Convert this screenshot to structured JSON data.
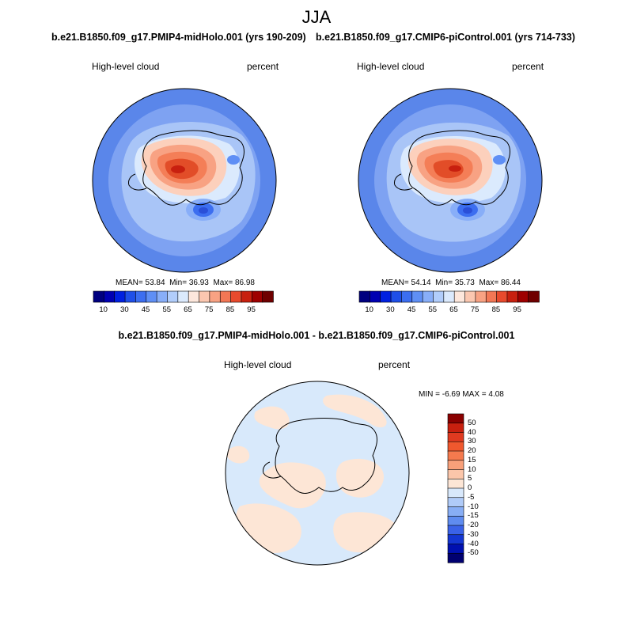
{
  "title": "JJA",
  "panels": [
    {
      "title": "b.e21.B1850.f09_g17.PMIP4-midHolo.001 (yrs 190-209)",
      "variable": "High-level cloud",
      "units": "percent",
      "stats": {
        "mean_label": "MEAN=",
        "mean": "53.84",
        "min_label": "Min=",
        "min": "36.93",
        "max_label": "Max=",
        "max": "86.98"
      }
    },
    {
      "title": "b.e21.B1850.f09_g17.CMIP6-piControl.001 (yrs 714-733)",
      "variable": "High-level cloud",
      "units": "percent",
      "stats": {
        "mean_label": "MEAN=",
        "mean": "54.14",
        "min_label": "Min=",
        "min": "35.73",
        "max_label": "Max=",
        "max": "86.44"
      }
    }
  ],
  "abs_colorbar": {
    "tick_labels": [
      "10",
      "30",
      "45",
      "55",
      "65",
      "75",
      "85",
      "95"
    ],
    "colors": [
      "#00007f",
      "#0000b2",
      "#0020e0",
      "#1f4fe8",
      "#3c6ef0",
      "#5f8ff5",
      "#88aef8",
      "#b1cdfb",
      "#dbeafd",
      "#fde7dc",
      "#fbc7b0",
      "#f8a283",
      "#f27755",
      "#e84a2d",
      "#c8200f",
      "#9e0000",
      "#6f0000"
    ]
  },
  "difference": {
    "title": "b.e21.B1850.f09_g17.PMIP4-midHolo.001 - b.e21.B1850.f09_g17.CMIP6-piControl.001",
    "variable": "High-level cloud",
    "units": "percent",
    "stats": {
      "min_label": "MIN =",
      "min": "-6.69",
      "max_label": "MAX =",
      "max": "4.08"
    }
  },
  "diff_colorbar": {
    "tick_labels": [
      "50",
      "40",
      "30",
      "20",
      "15",
      "10",
      "5",
      "0",
      "-5",
      "-10",
      "-15",
      "-20",
      "-30",
      "-40",
      "-50"
    ],
    "colors": [
      "#8a0000",
      "#c8200f",
      "#e03a20",
      "#f0582e",
      "#f57a4e",
      "#f8a07a",
      "#fbc6aa",
      "#fde6d6",
      "#d8e8fb",
      "#b0cbf8",
      "#88aef5",
      "#5f8cf0",
      "#3a62e8",
      "#1436d2",
      "#0010b0",
      "#000070"
    ]
  },
  "colors": {
    "ocean_far": "#5a86ea",
    "ocean_mid": "#7ea2f2",
    "ocean_near": "#a9c5f7",
    "warm_peak": "#e24d28",
    "warm_mid": "#f47e57",
    "warm_low": "#fcd0bc",
    "cool_spot": "#2a4fd8",
    "diff_neg": "#d8e9fb",
    "diff_pos": "#fde6d6"
  }
}
